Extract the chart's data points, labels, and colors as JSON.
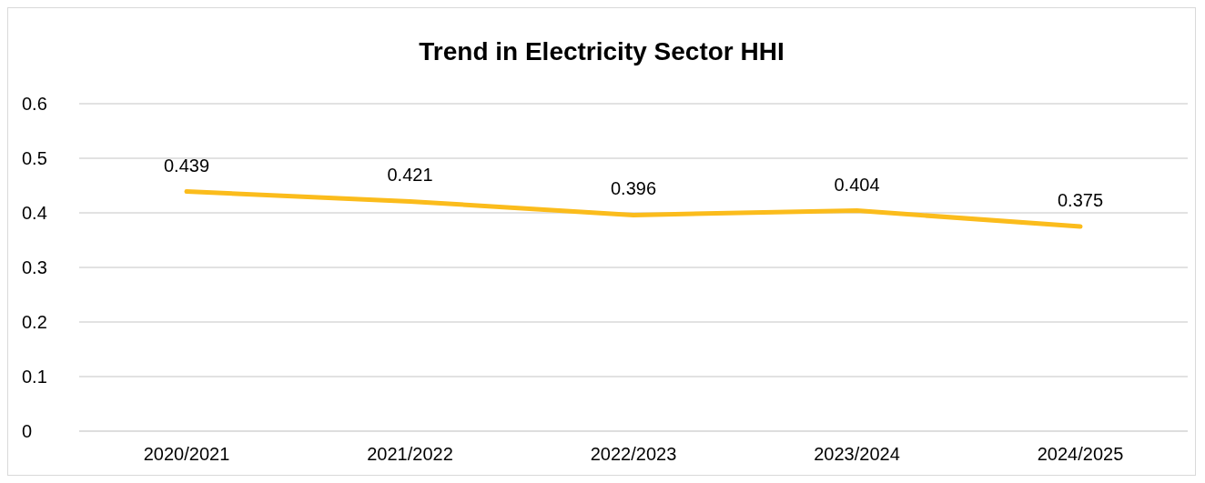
{
  "chart_data": {
    "type": "line",
    "title": "Trend in Electricity Sector HHI",
    "categories": [
      "2020/2021",
      "2021/2022",
      "2022/2023",
      "2023/2024",
      "2024/2025"
    ],
    "series": [
      {
        "color": "#fbbc1c",
        "values": [
          0.439,
          0.421,
          0.396,
          0.404,
          0.375
        ]
      }
    ],
    "ylim": [
      0,
      0.6
    ],
    "yticks": [
      0,
      0.1,
      0.2,
      0.3,
      0.4,
      0.5,
      0.6
    ],
    "grid": "y",
    "data_labels": true,
    "marker": "none",
    "line_style": "solid"
  }
}
